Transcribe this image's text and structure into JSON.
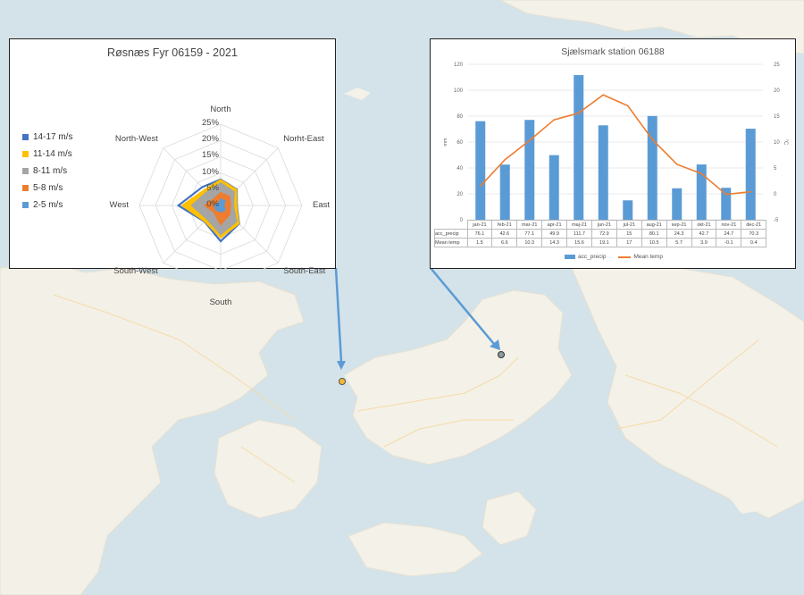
{
  "radar_chart": {
    "title": "Røsnæs Fyr 06159 - 2021",
    "chart_data": {
      "type": "radar",
      "title": "Røsnæs Fyr 06159 - 2021",
      "directions": [
        "North",
        "Norht-East",
        "East",
        "South-East",
        "South",
        "South-West",
        "West",
        "North-West"
      ],
      "rticks": [
        "0%",
        "5%",
        "10%",
        "15%",
        "20%",
        "25%"
      ],
      "rmax": 25,
      "series": [
        {
          "name": "14-17 m/s",
          "color": "#4472c4",
          "values": [
            8,
            7,
            5,
            8,
            11,
            7,
            13,
            8
          ]
        },
        {
          "name": "11-14 m/s",
          "color": "#ffc000",
          "values": [
            8,
            7,
            5,
            8,
            10,
            7,
            12,
            7
          ]
        },
        {
          "name": "8-11 m/s",
          "color": "#a5a5a5",
          "values": [
            7,
            6,
            4,
            7,
            9,
            6,
            9,
            6
          ]
        },
        {
          "name": "5-8 m/s",
          "color": "#ed7d31",
          "values": [
            4,
            4,
            3,
            4,
            6,
            3,
            5,
            3
          ]
        },
        {
          "name": "2-5 m/s",
          "color": "#5b9bd5",
          "values": [
            2,
            2,
            1,
            2,
            2,
            2,
            2,
            1
          ]
        }
      ]
    }
  },
  "bar_chart": {
    "title": "Sjælsmark station 06188",
    "ylabel_left": "mm",
    "ylabel_right": "°C",
    "chart_data": {
      "type": "bar",
      "title": "Sjælsmark station 06188",
      "categories": [
        "jan-21",
        "feb-21",
        "mar-21",
        "apr-21",
        "maj-21",
        "jun-21",
        "jul-21",
        "aug-21",
        "sep-21",
        "okt-21",
        "nov-21",
        "dec-21"
      ],
      "yticks_left": [
        "0",
        "20",
        "40",
        "60",
        "80",
        "100",
        "120"
      ],
      "yticks_right": [
        "-5",
        "0",
        "5",
        "10",
        "15",
        "20",
        "25"
      ],
      "ylim_left": [
        0,
        120
      ],
      "ylim_right": [
        -5,
        25
      ],
      "series": [
        {
          "name": "acc_precip",
          "type": "bar",
          "axis": "left",
          "color": "#5b9bd5",
          "values": [
            76.1,
            42.6,
            77.1,
            49.9,
            111.7,
            72.9,
            15,
            80.1,
            24.3,
            42.7,
            24.7,
            70.3
          ],
          "labels": [
            "76.1",
            "42.6",
            "77.1",
            "49.9",
            "111.7",
            "72.9",
            "15",
            "80.1",
            "24.3",
            "42.7",
            "24.7",
            "70.3"
          ]
        },
        {
          "name": "Mean temp",
          "type": "line",
          "axis": "right",
          "color": "#ed7d31",
          "values": [
            1.5,
            6.6,
            10.3,
            14.3,
            15.6,
            19.1,
            17,
            10.5,
            5.7,
            3.9,
            -0.1,
            0.4
          ],
          "labels": [
            "1.5",
            "6.6",
            "10.3",
            "14.3",
            "15.6",
            "19.1",
            "17",
            "10.5",
            "5.7",
            "3.9",
            "-0.1",
            "0.4"
          ]
        }
      ]
    }
  },
  "colors": {
    "map_water": "#d4e3e9",
    "map_land": "#f4f1e8",
    "pointer": "#5b9bd5",
    "site_orange": "#f5b82e",
    "site_grey": "#8c9aa0"
  }
}
